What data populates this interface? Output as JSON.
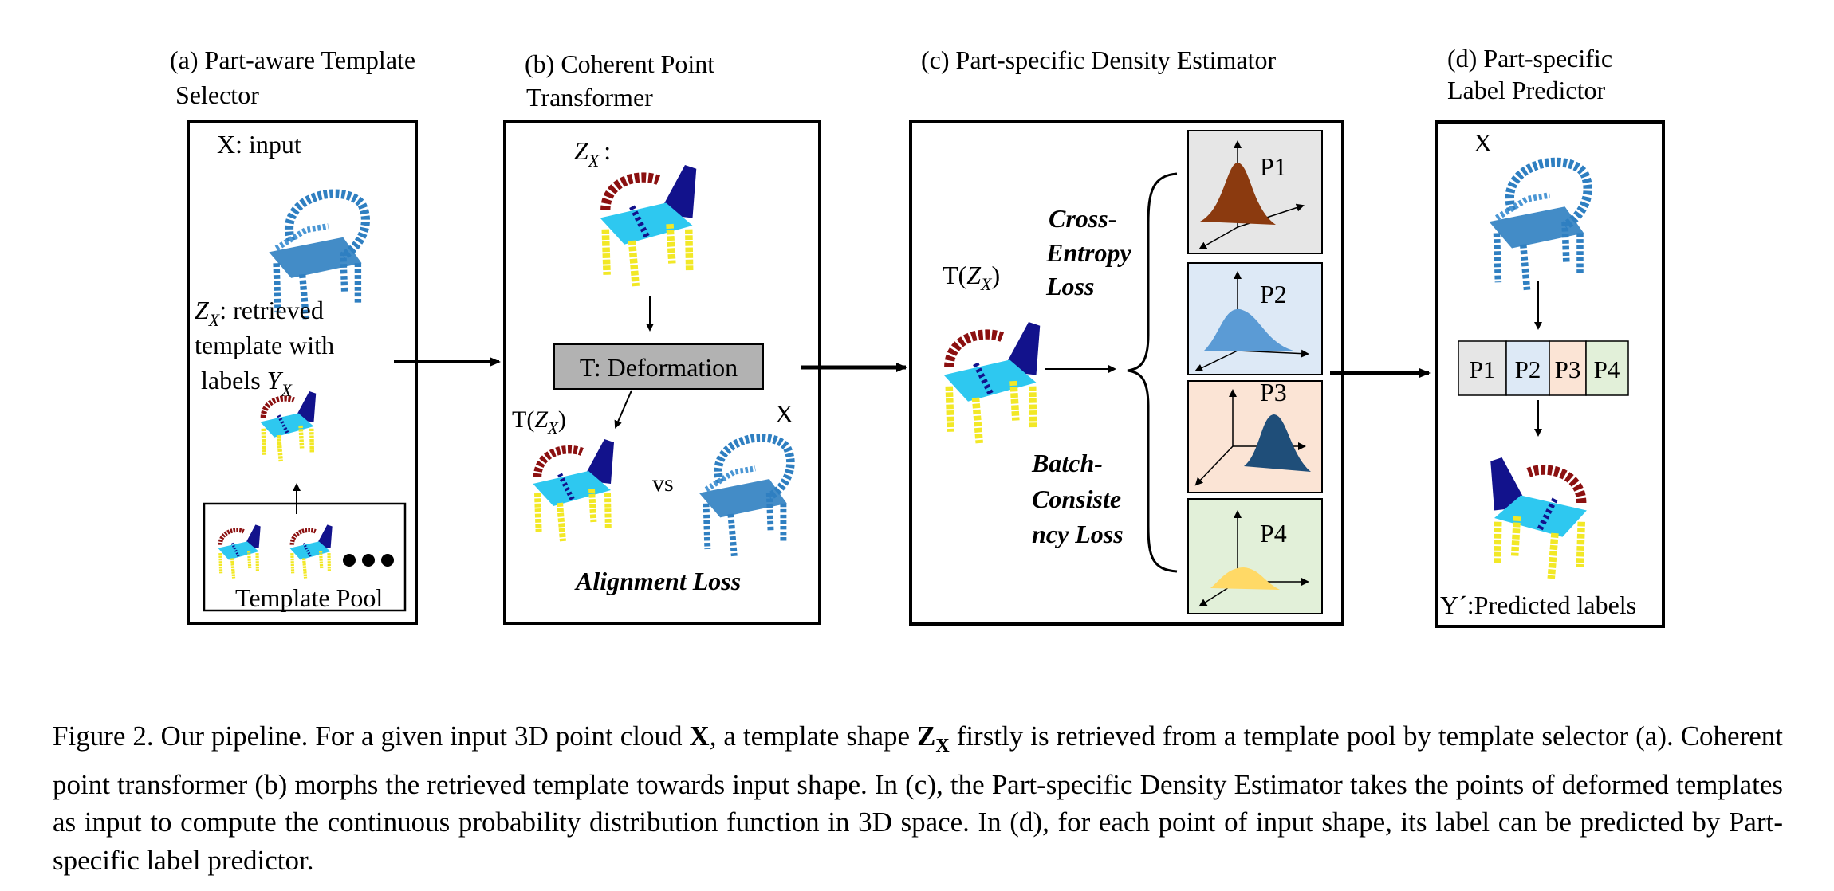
{
  "panels": {
    "a": {
      "title_line1": "(a) Part-aware Template",
      "title_line2": "Selector",
      "input_label": "X: input",
      "retrieved_label_line1": ": retrieved",
      "retrieved_label_line2": "template with",
      "retrieved_label_line3": "labels",
      "pool_label": "Template Pool"
    },
    "b": {
      "title_line1": "(b) Coherent Point",
      "title_line2": "Transformer",
      "zx_label": ":",
      "deformation_label": "T: Deformation",
      "tzx_prefix": "T(",
      "tzx_suffix": ")",
      "vs_label": "vs",
      "x_label": "X",
      "loss_label": "Alignment Loss"
    },
    "c": {
      "title": "(c) Part-specific Density Estimator",
      "tzx_prefix": "T(",
      "tzx_suffix": ")",
      "ce_line1": "Cross-",
      "ce_line2": "Entropy",
      "ce_line3": "Loss",
      "bc_line1": "Batch-",
      "bc_line2": "Consiste",
      "bc_line3": "ncy Loss",
      "parts": [
        {
          "label": "P1",
          "bg": "#e6e6e6",
          "color": "#8b3a0f"
        },
        {
          "label": "P2",
          "bg": "#dde9f6",
          "color": "#5b9bd5"
        },
        {
          "label": "P3",
          "bg": "#fbe4d5",
          "color": "#1f4e79"
        },
        {
          "label": "P4",
          "bg": "#e2f0d9",
          "color": "#ffd966"
        }
      ]
    },
    "d": {
      "title_line1": "(d) Part-specific",
      "title_line2": "Label Predictor",
      "x_label": "X",
      "parts": [
        {
          "label": "P1",
          "bg": "#e6e6e6"
        },
        {
          "label": "P2",
          "bg": "#dde9f6"
        },
        {
          "label": "P3",
          "bg": "#fbe4d5"
        },
        {
          "label": "P4",
          "bg": "#e2f0d9"
        }
      ],
      "predicted_label": "Y´:Predicted labels"
    }
  },
  "symbols": {
    "Z": "Z",
    "X": "X",
    "Y": "Y"
  },
  "caption": {
    "part1": "Figure 2. Our pipeline.  For a given input 3D point cloud ",
    "bold_x": "X",
    "part2": ", a template shape ",
    "bold_z": "Z",
    "part3": " firstly is retrieved from a template pool by template selector (a). Coherent point transformer (b) morphs the retrieved template towards input shape. In (c), the Part-specific Density Estimator takes the points of deformed templates as input to compute the continuous probability distribution function in 3D space. In (d), for each point of input shape, its label can be predicted by Part-specific label predictor."
  },
  "colors": {
    "chair_input": "#2f7fc1",
    "seg_back": "#12128c",
    "seg_arm": "#8b1010",
    "seg_seat": "#2ec8f0",
    "seg_leg": "#f2e826"
  }
}
